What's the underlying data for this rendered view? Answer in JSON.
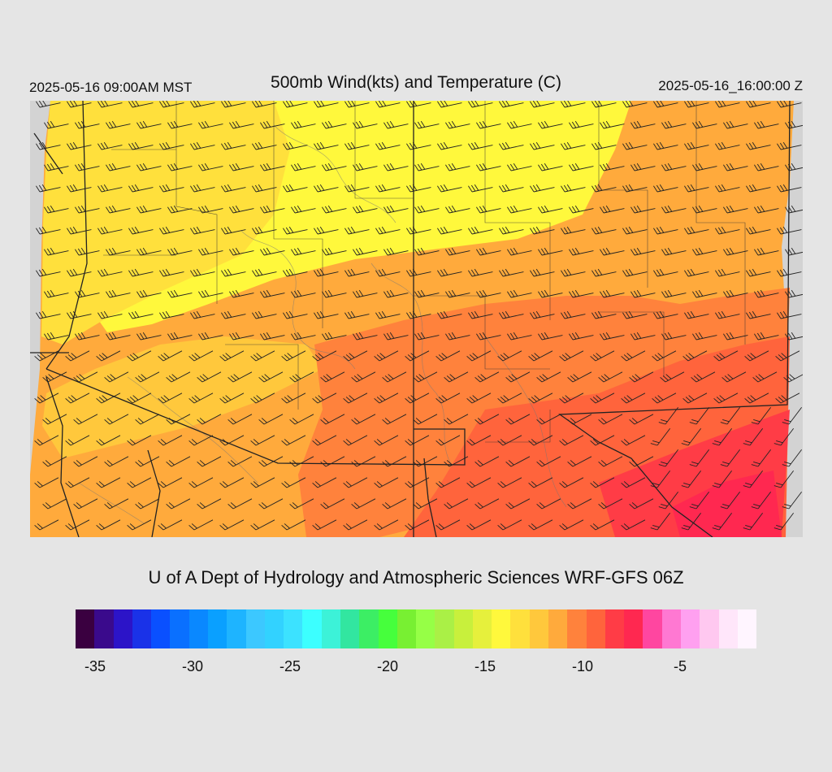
{
  "header": {
    "valid_local": "2025-05-16 09:00AM MST",
    "title": "500mb Wind(kts) and Temperature (C)",
    "valid_utc": "2025-05-16_16:00:00 Z"
  },
  "footer": {
    "credit": "U of A Dept of Hydrology and Atmospheric Sciences WRF-GFS 06Z"
  },
  "legend": {
    "colors": [
      "#3a0040",
      "#3a0a8c",
      "#2c14c8",
      "#1a32e8",
      "#0a50ff",
      "#0a70ff",
      "#0a88ff",
      "#0aa0ff",
      "#1eb4ff",
      "#3cc8ff",
      "#32d2ff",
      "#3ce2ff",
      "#3cffff",
      "#3cf2d8",
      "#32e6a0",
      "#3cee64",
      "#46ff3c",
      "#78f032",
      "#96ff46",
      "#aaf046",
      "#c8f03c",
      "#e6f03c",
      "#fff83c",
      "#ffe03c",
      "#ffc83c",
      "#ffaa3c",
      "#ff823c",
      "#ff643c",
      "#ff3c46",
      "#ff2850",
      "#ff46a0",
      "#ff78d2",
      "#ffa0f0",
      "#ffc8f0",
      "#ffe6fa",
      "#fff5ff"
    ],
    "tick_labels": [
      "-35",
      "-30",
      "-25",
      "-20",
      "-15",
      "-10",
      "-5"
    ]
  },
  "map": {
    "field": "500mb temperature (C) with wind barbs (kts)"
  }
}
